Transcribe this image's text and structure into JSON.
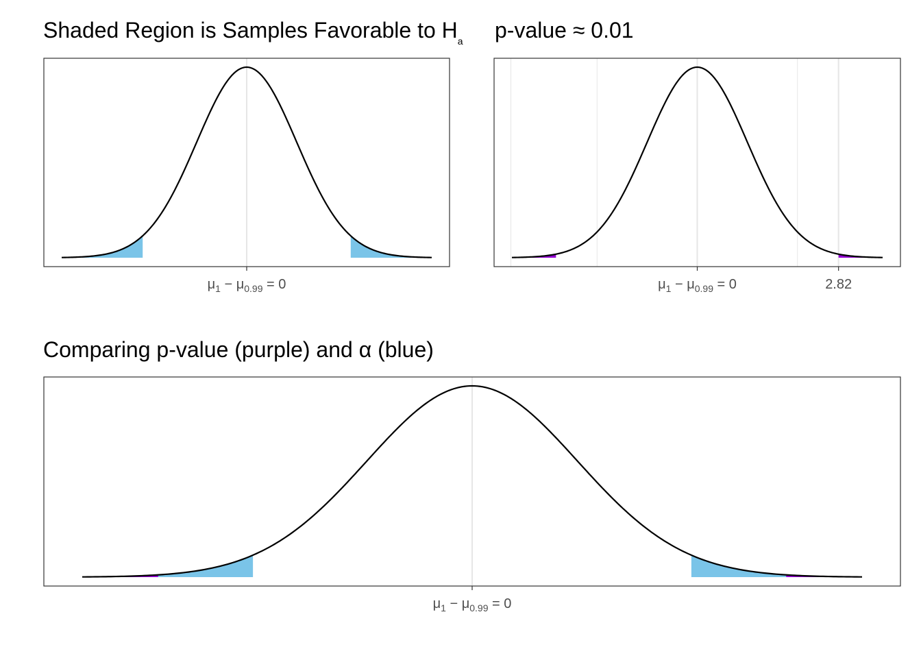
{
  "colors": {
    "alpha_fill": "#7ac4e8",
    "pvalue_fill": "#9400d3",
    "curve": "#000000",
    "grid": "#e6e6e6",
    "panel_border": "#333333"
  },
  "chart_data": [
    {
      "type": "area",
      "panel": "top-left",
      "title": "Shaded Region is Samples Favorable to H",
      "title_subscript": "a",
      "distribution": "normal",
      "mean": 0,
      "sd": 1,
      "x_range": [
        -3.7,
        3.7
      ],
      "shaded_alpha": {
        "left_upper": -2.08,
        "right_lower": 2.08
      },
      "x_ticks": [
        {
          "value": 0,
          "label": {
            "mu": "μ",
            "s1": "1",
            "minus": " − μ",
            "s2": "0.99",
            "rest": " = 0"
          }
        }
      ],
      "grid": true
    },
    {
      "type": "area",
      "panel": "top-right",
      "title": "p-value ≈ 0.01",
      "distribution": "normal",
      "mean": 0,
      "sd": 1,
      "x_range": [
        -3.7,
        3.7
      ],
      "shaded_pvalue": {
        "left_upper": -2.82,
        "right_lower": 2.82
      },
      "x_ticks": [
        {
          "value": 0,
          "label": {
            "mu": "μ",
            "s1": "1",
            "minus": " − μ",
            "s2": "0.99",
            "rest": " = 0"
          }
        },
        {
          "value": 2.82,
          "label_plain": "2.82"
        }
      ],
      "grid": true
    },
    {
      "type": "area",
      "panel": "bottom",
      "title": "Comparing p-value (purple) and α (blue)",
      "distribution": "normal",
      "mean": 0,
      "sd": 1,
      "x_range": [
        -3.7,
        3.7
      ],
      "shaded_alpha": {
        "left_upper": -2.08,
        "right_lower": 2.08
      },
      "shaded_pvalue": {
        "left_upper": -2.98,
        "right_lower": 2.98
      },
      "x_ticks": [
        {
          "value": 0,
          "label": {
            "mu": "μ",
            "s1": "1",
            "minus": " − μ",
            "s2": "0.99",
            "rest": " = 0"
          }
        }
      ],
      "grid": true
    }
  ]
}
